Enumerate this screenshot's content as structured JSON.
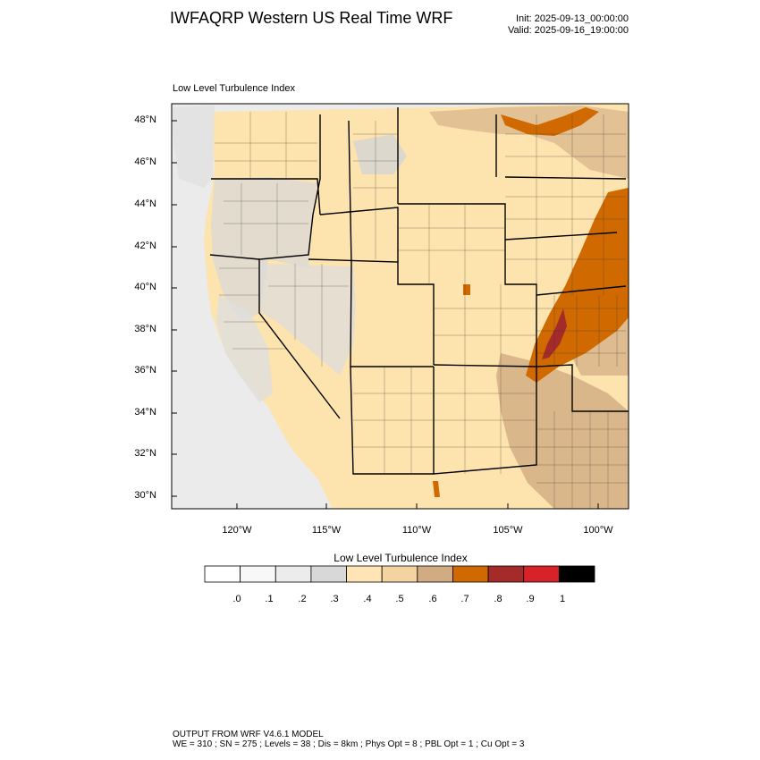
{
  "header": {
    "title": "IWFAQRP Western US Real Time WRF",
    "init": "Init: 2025-09-13_00:00:00",
    "valid": "Valid: 2025-09-16_19:00:00"
  },
  "map": {
    "field_title": "Low Level Turbulence Index",
    "lat_labels": [
      "48°N",
      "46°N",
      "44°N",
      "42°N",
      "40°N",
      "38°N",
      "36°N",
      "34°N",
      "32°N",
      "30°N"
    ],
    "lon_labels": [
      "120°W",
      "115°W",
      "110°W",
      "105°W",
      "100°W"
    ],
    "ocean_color": "#ebebeb",
    "land_base_color": "#fde3ae"
  },
  "colorbar": {
    "title": "Low Level Turbulence Index",
    "labels": [
      ".0",
      ".1",
      ".2",
      ".3",
      ".4",
      ".5",
      ".6",
      ".7",
      ".8",
      ".9",
      "1"
    ],
    "colors": [
      "#ffffff",
      "#f8f8f8",
      "#ececec",
      "#d8d8d8",
      "#ffe5b5",
      "#f3d3a0",
      "#d1ab82",
      "#d06a00",
      "#a52a2a",
      "#d8222a",
      "#000000"
    ]
  },
  "footer": {
    "line1": "OUTPUT FROM WRF V4.6.1 MODEL",
    "line2": "WE = 310 ; SN = 275 ; Levels = 38 ; Dis = 8km ; Phys Opt = 8 ; PBL Opt = 1 ; Cu Opt = 3"
  }
}
